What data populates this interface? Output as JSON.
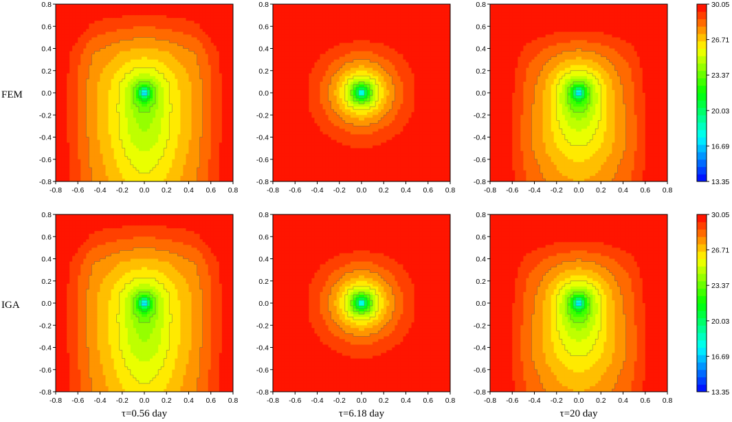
{
  "chart_data": {
    "type": "heatmap",
    "rows": [
      {
        "label": "FEM"
      },
      {
        "label": "IGA"
      }
    ],
    "columns": [
      {
        "label": "τ=0.56 day",
        "case": "t056"
      },
      {
        "label": "τ=6.18 day",
        "case": "t618"
      },
      {
        "label": "τ=20 day",
        "case": "t20"
      }
    ],
    "xlim": [
      -0.8,
      0.8
    ],
    "ylim": [
      -0.8,
      0.8
    ],
    "xticks": [
      "-0.8",
      "-0.6",
      "-0.4",
      "-0.2",
      "0.0",
      "0.2",
      "0.4",
      "0.6",
      "0.8"
    ],
    "yticks": [
      "0.8",
      "0.6",
      "0.4",
      "0.2",
      "0.0",
      "-0.2",
      "-0.4",
      "-0.6",
      "-0.8"
    ],
    "colorbar": {
      "min": 13.35,
      "max": 30.05,
      "ticks": [
        "30.05",
        "26.71",
        "23.37",
        "20.03",
        "16.69",
        "13.35"
      ],
      "colormap": [
        "#0000ff",
        "#00ffff",
        "#00ff00",
        "#ffff00",
        "#ff0000"
      ]
    },
    "contour_line_color": "#555555"
  }
}
